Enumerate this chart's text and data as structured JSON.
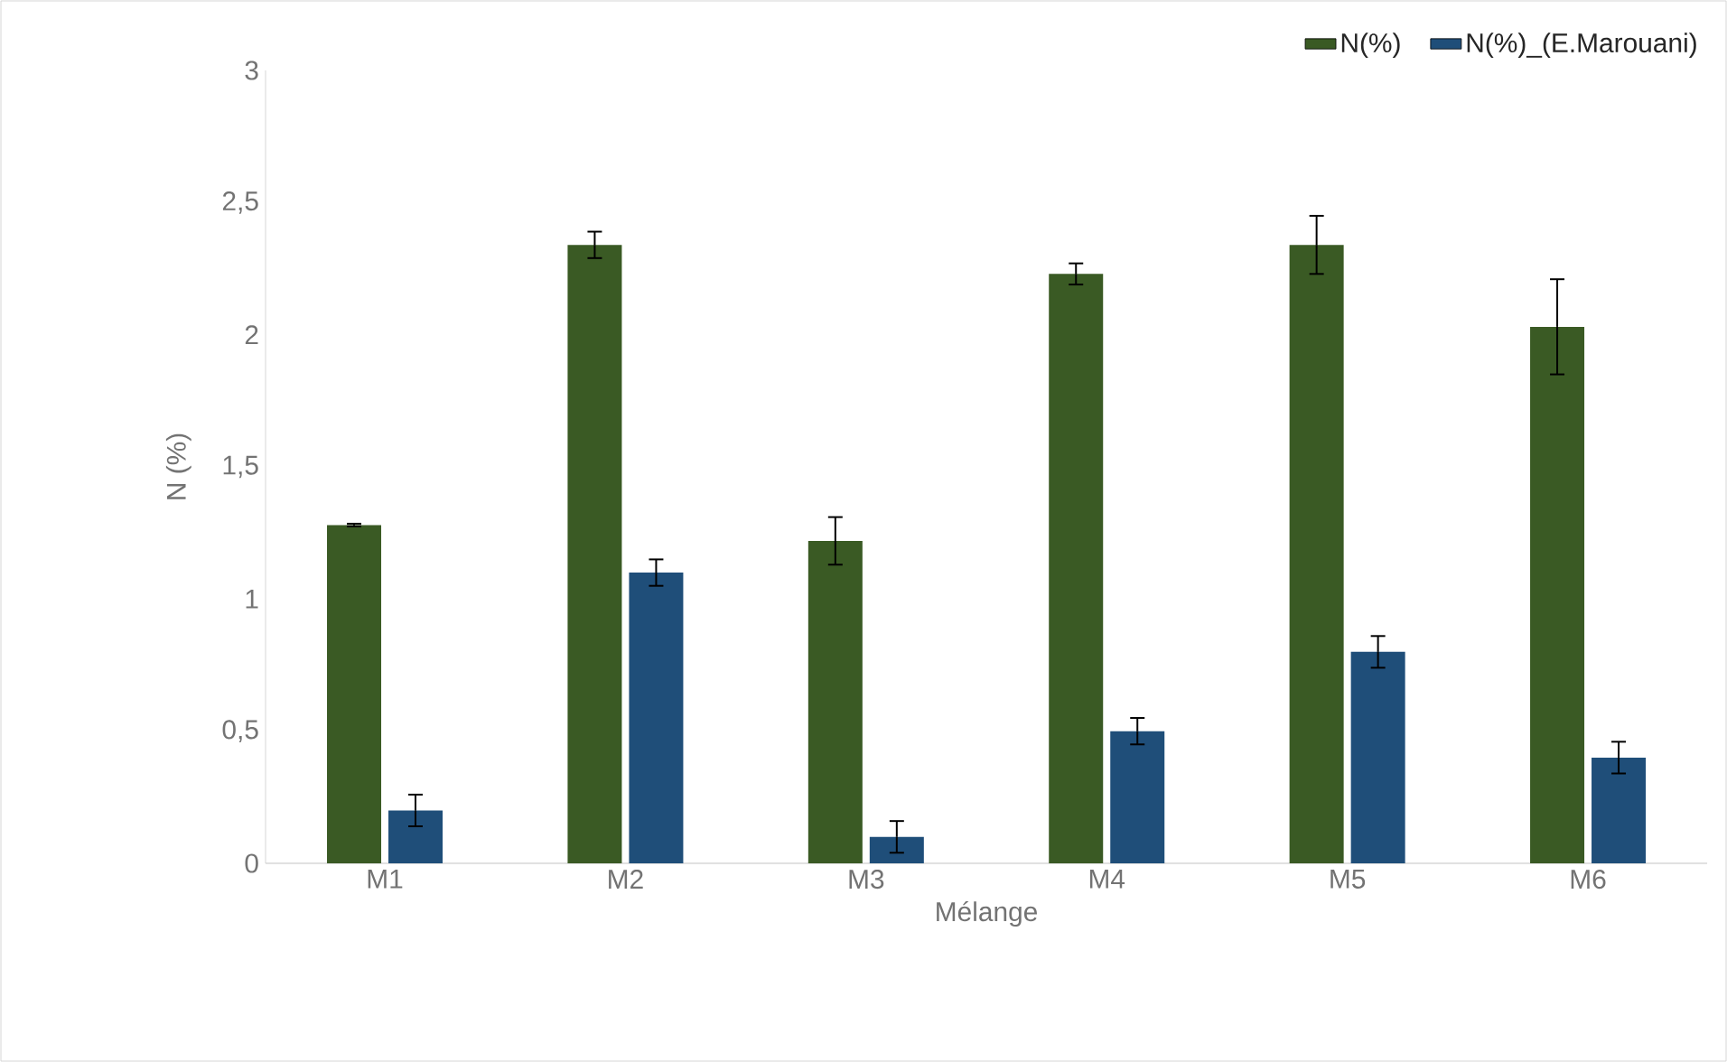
{
  "chart_data": {
    "type": "bar",
    "xlabel": "Mélange",
    "ylabel": "N (%)",
    "categories": [
      "M1",
      "M2",
      "M3",
      "M4",
      "M5",
      "M6"
    ],
    "series": [
      {
        "name": "N(%)",
        "color": "#3a5a24",
        "values": [
          1.28,
          2.34,
          1.22,
          2.23,
          2.34,
          2.03
        ],
        "errors": [
          0.005,
          0.05,
          0.09,
          0.04,
          0.11,
          0.18
        ]
      },
      {
        "name": "N(%)_(E.Marouani)",
        "color": "#1f4e79",
        "values": [
          0.2,
          1.1,
          0.1,
          0.5,
          0.8,
          0.4
        ],
        "errors": [
          0.06,
          0.05,
          0.06,
          0.05,
          0.06,
          0.06
        ]
      }
    ],
    "ylim": [
      0,
      3
    ],
    "yticks": [
      0,
      {
        "value": 0.5,
        "label": "0,5"
      },
      1,
      {
        "value": 1.5,
        "label": "1,5"
      },
      2,
      {
        "value": 2.5,
        "label": "2,5"
      },
      3
    ],
    "legend": "top right",
    "grid": false
  }
}
